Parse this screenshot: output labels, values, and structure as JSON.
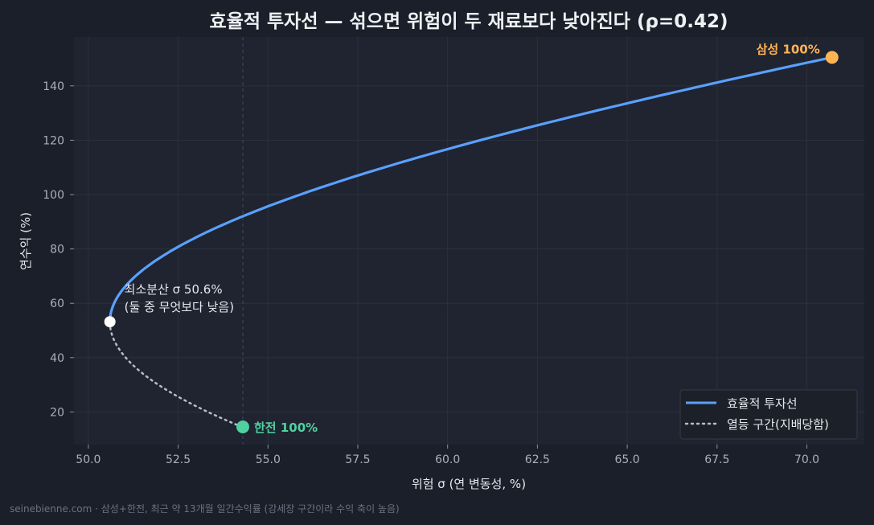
{
  "title": "효율적 투자선 — 섞으면 위험이 두 재료보다 낮아진다 (ρ=0.42)",
  "footer": "seinebienne.com · 삼성+한전, 최근 약 13개월 일간수익률 (강세장 구간이라 수익 축이 높음)",
  "colors": {
    "background": "#1b1f29",
    "plot_bg": "#1f2430",
    "frontier": "#5aa0ff",
    "inefficient": "#b8bcc6",
    "samsung": "#ffb454",
    "kepco": "#4fd1a0",
    "min_var": "#ffffff",
    "grid": "#2a303c"
  },
  "chart_data": {
    "type": "line",
    "xlabel": "위험 σ (연 변동성, %)",
    "ylabel": "연수익 (%)",
    "xlim": [
      49.6,
      71.6
    ],
    "ylim": [
      8,
      158
    ],
    "x_ticks": [
      50.0,
      52.5,
      55.0,
      57.5,
      60.0,
      62.5,
      65.0,
      67.5,
      70.0
    ],
    "x_tick_labels": [
      "50.0",
      "52.5",
      "55.0",
      "57.5",
      "60.0",
      "62.5",
      "65.0",
      "67.5",
      "70.0"
    ],
    "y_ticks": [
      20,
      40,
      60,
      80,
      100,
      120,
      140
    ],
    "y_tick_labels": [
      "20",
      "40",
      "60",
      "80",
      "100",
      "120",
      "140"
    ],
    "grid": true,
    "legend_position": "bottom-right",
    "reference_line_x": 54.3,
    "assets": {
      "samsung": {
        "label": "삼성 100%",
        "sigma": 70.7,
        "return": 150.5
      },
      "kepco": {
        "label": "한전 100%",
        "sigma": 54.3,
        "return": 14.5
      },
      "min_variance": {
        "sigma": 50.6,
        "return": 53.2
      }
    },
    "annotation": [
      "최소분산 σ 50.6%",
      "(둘 중 무엇보다 낮음)"
    ],
    "series": [
      {
        "name": "효율적 투자선",
        "style": "solid"
      },
      {
        "name": "열등 구간(지배당함)",
        "style": "dotted"
      }
    ]
  }
}
